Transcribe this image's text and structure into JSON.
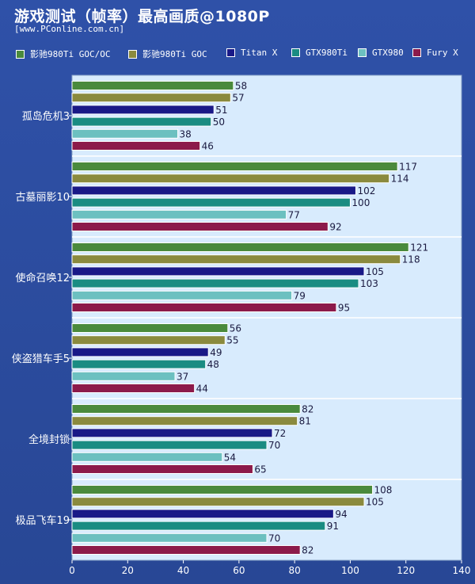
{
  "title": "游戏测试（帧率）最高画质@1080P",
  "subtitle": "[www.PConline.com.cn]",
  "colors": {
    "background": "#2b4a9f",
    "plot_bg": "#d8ebfd",
    "series": [
      "#4a8a3c",
      "#8a8a3e",
      "#191987",
      "#1a8c82",
      "#6cc0c0",
      "#8c1a4a"
    ]
  },
  "chart_data": {
    "type": "bar",
    "orientation": "horizontal",
    "categories": [
      "孤岛危机3",
      "古墓丽影10",
      "使命召唤12",
      "侠盗猎车手5",
      "全境封锁",
      "极品飞车19"
    ],
    "series": [
      {
        "name": "影驰980Ti GOC/OC",
        "values": [
          58,
          117,
          121,
          56,
          82,
          108
        ]
      },
      {
        "name": "影驰980Ti GOC",
        "values": [
          57,
          114,
          118,
          55,
          81,
          105
        ]
      },
      {
        "name": "Titan X",
        "values": [
          51,
          102,
          105,
          49,
          72,
          94
        ]
      },
      {
        "name": "GTX980Ti",
        "values": [
          50,
          100,
          103,
          48,
          70,
          91
        ]
      },
      {
        "name": "GTX980",
        "values": [
          38,
          77,
          79,
          37,
          54,
          70
        ]
      },
      {
        "name": "Fury X",
        "values": [
          46,
          92,
          95,
          44,
          65,
          82
        ]
      }
    ],
    "xlim": [
      0,
      140
    ],
    "xticks": [
      0,
      20,
      40,
      60,
      80,
      100,
      120,
      140
    ],
    "xlabel": "",
    "ylabel": "",
    "grid": false,
    "legend_position": "top"
  }
}
